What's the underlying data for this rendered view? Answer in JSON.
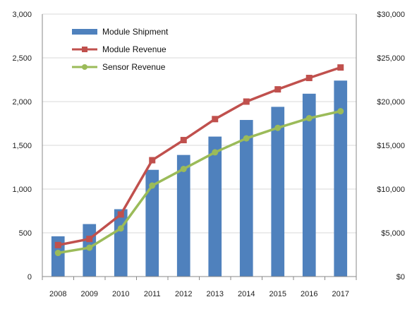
{
  "chart_data": {
    "type": "bar",
    "categories": [
      "2008",
      "2009",
      "2010",
      "2011",
      "2012",
      "2013",
      "2014",
      "2015",
      "2016",
      "2017"
    ],
    "series": [
      {
        "name": "Module Shipment",
        "type": "bar",
        "axis": "left",
        "color": "#4f81bd",
        "values": [
          460,
          600,
          770,
          1220,
          1390,
          1600,
          1790,
          1940,
          2090,
          2240
        ]
      },
      {
        "name": "Module Revenue",
        "type": "line",
        "axis": "right",
        "color": "#c0504d",
        "marker": "square",
        "values": [
          3600,
          4300,
          7100,
          13300,
          15600,
          18000,
          20000,
          21400,
          22700,
          23900
        ]
      },
      {
        "name": "Sensor Revenue",
        "type": "line",
        "axis": "right",
        "color": "#9bbb59",
        "marker": "circle",
        "values": [
          2700,
          3300,
          5500,
          10400,
          12300,
          14200,
          15800,
          17000,
          18100,
          18900
        ]
      }
    ],
    "y_left": {
      "min": 0,
      "max": 3000,
      "ticks": [
        "0",
        "500",
        "1,000",
        "1,500",
        "2,000",
        "2,500",
        "3,000"
      ]
    },
    "y_right": {
      "min": 0,
      "max": 30000,
      "ticks": [
        "$0",
        "$5,000",
        "$10,000",
        "$15,000",
        "$20,000",
        "$25,000",
        "$30,000"
      ]
    },
    "grid": true,
    "legend_position": "top-left"
  }
}
